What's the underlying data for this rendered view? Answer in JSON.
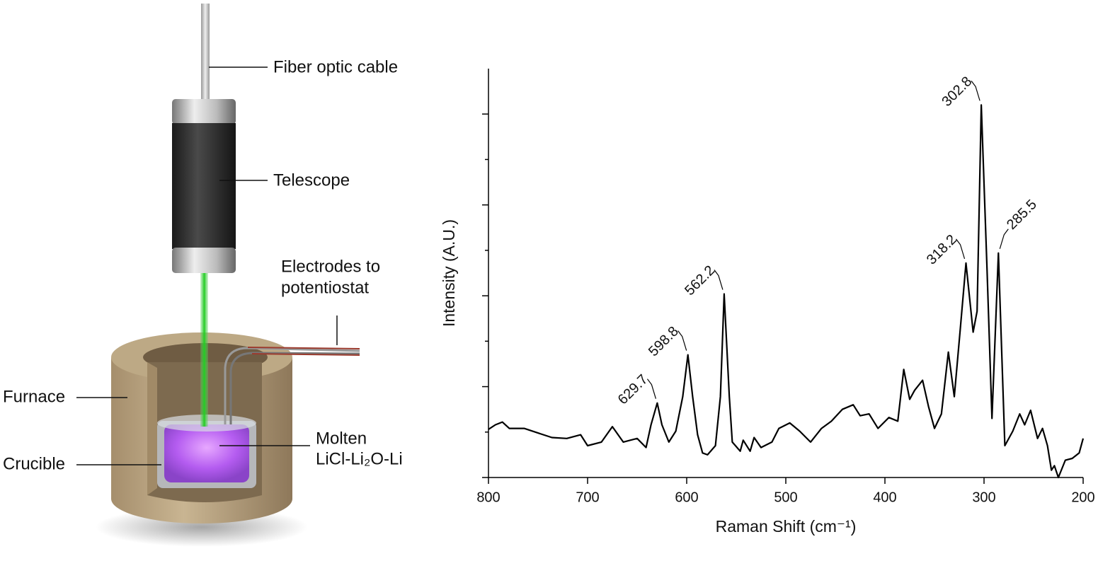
{
  "diagram": {
    "labels": {
      "fiber": "Fiber optic cable",
      "telescope": "Telescope",
      "electrodes": [
        "Electrodes to",
        "potentiostat"
      ],
      "furnace": "Furnace",
      "crucible": "Crucible",
      "molten": [
        "Molten",
        "LiCl-Li₂O-Li"
      ]
    }
  },
  "chart_data": {
    "type": "line",
    "xlabel": "Raman Shift (cm⁻¹)",
    "ylabel": "Intensity (A.U.)",
    "color": "#000000",
    "xlim": [
      800,
      200
    ],
    "xticks": [
      800,
      700,
      600,
      500,
      400,
      300,
      200
    ],
    "ylim": [
      0,
      4.5
    ],
    "yticks": [
      0,
      0.5,
      1,
      1.5,
      2,
      2.5,
      3,
      3.5,
      4
    ],
    "x": [
      800,
      793,
      786,
      779,
      764,
      750,
      736,
      721,
      707,
      700,
      686,
      675,
      664,
      650,
      641,
      636,
      629.7,
      625,
      618,
      611,
      604,
      598.8,
      594,
      589,
      584,
      579,
      571,
      566,
      562.2,
      557,
      554,
      546,
      543,
      536,
      532,
      525,
      514,
      507,
      496,
      486,
      475,
      464,
      454,
      443,
      432,
      425,
      416,
      407,
      396,
      387,
      381,
      375,
      370,
      362,
      356,
      350,
      343,
      336,
      330,
      324,
      318.2,
      311,
      307,
      302.8,
      297,
      292,
      285.5,
      279,
      271,
      264,
      259,
      253,
      246,
      241,
      236,
      232,
      229,
      225,
      218,
      211,
      204,
      200
    ],
    "values": [
      0.53,
      0.58,
      0.61,
      0.54,
      0.54,
      0.49,
      0.44,
      0.43,
      0.47,
      0.35,
      0.39,
      0.56,
      0.39,
      0.43,
      0.33,
      0.58,
      0.82,
      0.58,
      0.39,
      0.51,
      0.89,
      1.35,
      0.89,
      0.47,
      0.27,
      0.25,
      0.35,
      0.89,
      2.02,
      0.89,
      0.39,
      0.29,
      0.41,
      0.29,
      0.44,
      0.33,
      0.39,
      0.54,
      0.6,
      0.51,
      0.39,
      0.54,
      0.62,
      0.75,
      0.8,
      0.68,
      0.7,
      0.54,
      0.66,
      0.62,
      1.19,
      0.86,
      0.96,
      1.07,
      0.78,
      0.54,
      0.7,
      1.38,
      0.89,
      1.63,
      2.36,
      1.6,
      1.83,
      4.1,
      2.3,
      0.65,
      2.47,
      0.35,
      0.51,
      0.7,
      0.58,
      0.74,
      0.43,
      0.54,
      0.35,
      0.08,
      0.13,
      0,
      0.19,
      0.21,
      0.27,
      0.43
    ],
    "annotations": [
      {
        "label": "629.7",
        "x": 629.7,
        "y": 0.82
      },
      {
        "label": "598.8",
        "x": 598.8,
        "y": 1.35
      },
      {
        "label": "562.2",
        "x": 562.2,
        "y": 2.02
      },
      {
        "label": "318.2",
        "x": 318.2,
        "y": 2.36
      },
      {
        "label": "302.8",
        "x": 302.8,
        "y": 4.1
      },
      {
        "label": "285.5",
        "x": 285.5,
        "y": 2.47
      }
    ]
  }
}
